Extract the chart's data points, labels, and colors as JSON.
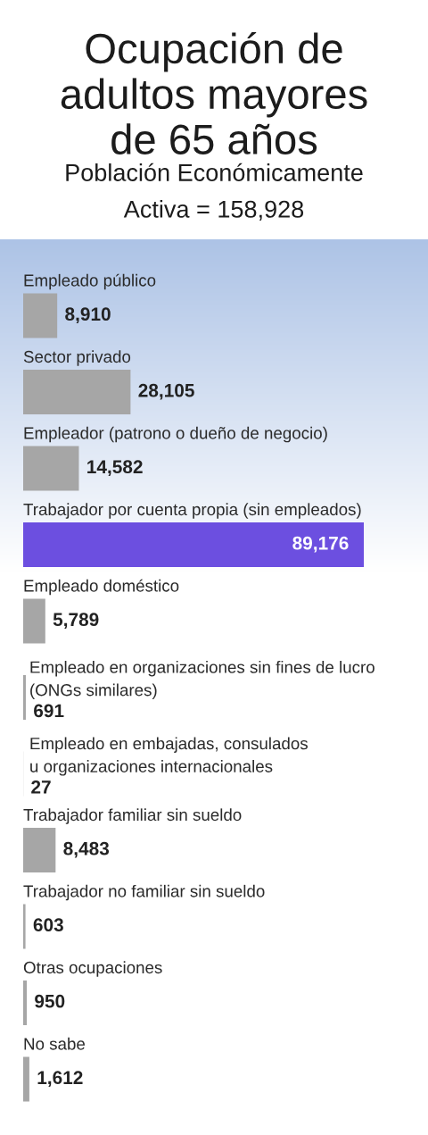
{
  "chart_data": {
    "type": "bar",
    "orientation": "horizontal",
    "title": "Ocupación de adultos mayores de 65 años",
    "subtitle": "Población Económicamente Activa = 158,928",
    "categories": [
      "Empleado público",
      "Sector privado",
      "Empleador (patrono o dueño de negocio)",
      "Trabajador por cuenta propia (sin empleados)",
      "Empleado doméstico",
      "Empleado en organizaciones sin fines de lucro\n(ONGs similares)",
      "Empleado en embajadas, consulados\nu organizaciones internacionales",
      "Trabajador familiar sin sueldo",
      "Trabajador no familiar sin sueldo",
      "Otras ocupaciones",
      "No sabe"
    ],
    "values": [
      8910,
      28105,
      14582,
      89176,
      5789,
      691,
      27,
      8483,
      603,
      950,
      1612
    ],
    "value_labels": [
      "8,910",
      "28,105",
      "14,582",
      "89,176",
      "5,789",
      "691",
      "27",
      "8,483",
      "603",
      "950",
      "1,612"
    ],
    "colors": [
      "#a6a6a6",
      "#a6a6a6",
      "#a6a6a6",
      "#6c4fe0",
      "#a6a6a6",
      "#a6a6a6",
      "#a6a6a6",
      "#a6a6a6",
      "#a6a6a6",
      "#a6a6a6",
      "#a6a6a6"
    ],
    "tick_labels": "y"
  }
}
